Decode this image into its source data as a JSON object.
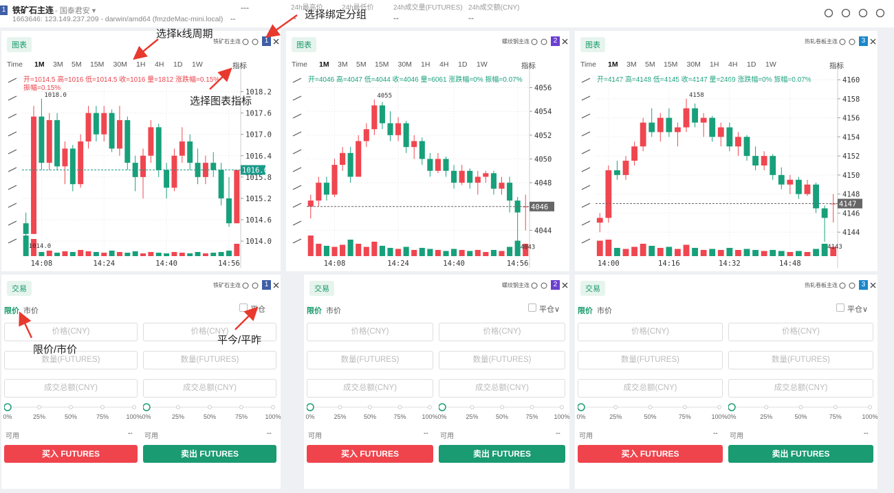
{
  "header": {
    "group": "1",
    "symbol": "铁矿石主连",
    "broker": "- 国泰君安 ▾",
    "info": "1663646: 123.149.237.209 - darwin/amd64 (fmzdeMac-mini.local)",
    "price": "---",
    "change": "--",
    "stats": [
      {
        "label": "24h最高价",
        "value": "--"
      },
      {
        "label": "24h最低价",
        "value": "--"
      },
      {
        "label": "24h成交量(FUTURES)",
        "value": "--"
      },
      {
        "label": "24h成交额(CNY)",
        "value": "--"
      }
    ]
  },
  "annotations": [
    "选择k线周期",
    "选择绑定分组",
    "选择图表指标",
    "限价/市价",
    "平今/平昨"
  ],
  "charts": [
    {
      "type": "candlestick",
      "tab": "图表",
      "symbol": "铁矿石主连",
      "group": "1",
      "group_color": "#3f5ea6",
      "periods": [
        "Time",
        "1M",
        "3M",
        "5M",
        "15M",
        "30M",
        "1H",
        "4H",
        "1D",
        "1W"
      ],
      "active_period": "1M",
      "indicator": "指标",
      "ohlc_lines": [
        "开=1014.5 高=1016 低=1014.5 收=1016 量=1812 涨跌幅=0.15%",
        "振幅=0.15%"
      ],
      "info_color": "#e8434c",
      "up_color": "#ef4650",
      "down_color": "#17a07a",
      "ylim": [
        1013.5,
        1018.75
      ],
      "vlim": [
        0,
        600
      ],
      "yticks": [
        {
          "value": 1014,
          "label": "1014.0"
        },
        1014.6,
        1015.2,
        1015.8,
        1016.4,
        {
          "value": 1017,
          "label": "1017.0"
        },
        1017.6,
        1018.2
      ],
      "xticks": [
        {
          "value": 2,
          "label": "14:08"
        },
        {
          "value": 10,
          "label": "14:24"
        },
        {
          "value": 18,
          "label": "14:40"
        },
        {
          "value": 26,
          "label": "14:56"
        }
      ],
      "last": {
        "value": 1016,
        "label": "1016.0"
      },
      "last_color": "#1a9a8a",
      "high_mark": {
        "value": 1018,
        "label": "1018.0"
      },
      "low_mark": {
        "value": 1014,
        "label": "1014.0"
      },
      "candles": [
        [
          1014.5,
          1014.8,
          1014.0,
          1014.2,
          300
        ],
        [
          1014.2,
          1017.8,
          1014.2,
          1017.5,
          250
        ],
        [
          1017.5,
          1018.0,
          1016.0,
          1016.2,
          60
        ],
        [
          1016.2,
          1017.6,
          1016.0,
          1017.4,
          80
        ],
        [
          1017.4,
          1017.6,
          1016.0,
          1016.1,
          50
        ],
        [
          1016.1,
          1016.8,
          1015.6,
          1016.6,
          70
        ],
        [
          1016.6,
          1016.7,
          1015.4,
          1015.6,
          60
        ],
        [
          1015.6,
          1017.0,
          1015.5,
          1016.8,
          90
        ],
        [
          1016.8,
          1017.8,
          1016.6,
          1017.6,
          70
        ],
        [
          1017.6,
          1017.8,
          1016.8,
          1017.0,
          60
        ],
        [
          1017.0,
          1017.8,
          1016.8,
          1017.6,
          50
        ],
        [
          1017.6,
          1017.7,
          1016.5,
          1016.6,
          80
        ],
        [
          1016.6,
          1017.8,
          1016.4,
          1017.4,
          60
        ],
        [
          1017.4,
          1017.5,
          1016.0,
          1016.2,
          50
        ],
        [
          1016.2,
          1016.4,
          1015.4,
          1015.8,
          70
        ],
        [
          1015.8,
          1016.6,
          1015.2,
          1016.4,
          40
        ],
        [
          1016.4,
          1017.4,
          1016.2,
          1017.2,
          60
        ],
        [
          1017.2,
          1017.3,
          1015.8,
          1016.0,
          50
        ],
        [
          1016.0,
          1016.2,
          1015.2,
          1015.5,
          40
        ],
        [
          1015.5,
          1016.6,
          1015.4,
          1016.4,
          60
        ],
        [
          1016.4,
          1017.2,
          1016.2,
          1016.8,
          50
        ],
        [
          1016.8,
          1017.0,
          1016.0,
          1016.2,
          40
        ],
        [
          1016.2,
          1016.6,
          1015.6,
          1015.8,
          60
        ],
        [
          1015.8,
          1016.4,
          1015.6,
          1016.2,
          40
        ],
        [
          1016.2,
          1016.5,
          1015.8,
          1016.0,
          50
        ],
        [
          1016.0,
          1016.2,
          1015.0,
          1015.2,
          60
        ],
        [
          1015.2,
          1015.8,
          1014.4,
          1014.5,
          80
        ],
        [
          1014.5,
          1016.0,
          1014.5,
          1016.0,
          180
        ]
      ]
    },
    {
      "type": "candlestick",
      "tab": "图表",
      "symbol": "螺纹钢主连",
      "group": "2",
      "group_color": "#6b3fd0",
      "periods": [
        "Time",
        "1M",
        "3M",
        "5M",
        "15M",
        "30M",
        "1H",
        "4H",
        "1D",
        "1W"
      ],
      "active_period": "1M",
      "indicator": "指标",
      "ohlc_lines": [
        "开=4046 高=4047 低=4044 收=4046 量=6061 涨跌幅=0% 振幅=0.07%"
      ],
      "info_color": "#17a07a",
      "up_color": "#ef4650",
      "down_color": "#17a07a",
      "ylim": [
        4041.6,
        4057.3
      ],
      "vlim": [
        0,
        400
      ],
      "yticks": [
        4044,
        4046,
        4048,
        4050,
        4052,
        4054,
        4056
      ],
      "xticks": [
        {
          "value": 3,
          "label": "14:08"
        },
        {
          "value": 11,
          "label": "14:24"
        },
        {
          "value": 18,
          "label": "14:40"
        },
        {
          "value": 26,
          "label": "14:56"
        }
      ],
      "last": {
        "value": 4046,
        "label": "4046"
      },
      "last_color": "#666666",
      "high_mark": {
        "value": 4055,
        "label": "4055"
      },
      "low_mark": {
        "value": 4043,
        "label": "4043"
      },
      "candles": [
        [
          4046.0,
          4047.0,
          4045.0,
          4046.5,
          200
        ],
        [
          4046.5,
          4048.5,
          4046.0,
          4048.0,
          120
        ],
        [
          4048.0,
          4048.5,
          4046.5,
          4047.0,
          100
        ],
        [
          4047.0,
          4050.0,
          4046.8,
          4049.5,
          90
        ],
        [
          4049.5,
          4051.0,
          4049.0,
          4050.5,
          110
        ],
        [
          4050.5,
          4051.0,
          4048.0,
          4048.5,
          160
        ],
        [
          4048.5,
          4052.0,
          4048.5,
          4051.5,
          120
        ],
        [
          4051.5,
          4053.0,
          4051.0,
          4052.5,
          90
        ],
        [
          4052.5,
          4055.0,
          4052.0,
          4054.5,
          140
        ],
        [
          4054.5,
          4054.8,
          4052.5,
          4053.0,
          100
        ],
        [
          4053.0,
          4054.0,
          4051.5,
          4052.0,
          80
        ],
        [
          4052.0,
          4053.5,
          4051.5,
          4053.0,
          70
        ],
        [
          4053.0,
          4053.2,
          4050.5,
          4051.0,
          90
        ],
        [
          4051.0,
          4052.0,
          4050.0,
          4051.5,
          60
        ],
        [
          4051.5,
          4051.8,
          4049.5,
          4050.0,
          80
        ],
        [
          4050.0,
          4050.5,
          4048.5,
          4049.0,
          70
        ],
        [
          4049.0,
          4050.5,
          4048.8,
          4050.0,
          60
        ],
        [
          4050.0,
          4050.2,
          4048.5,
          4049.0,
          50
        ],
        [
          4049.0,
          4049.5,
          4047.5,
          4048.0,
          70
        ],
        [
          4048.0,
          4049.5,
          4047.8,
          4049.0,
          60
        ],
        [
          4049.0,
          4049.2,
          4047.5,
          4048.0,
          50
        ],
        [
          4048.0,
          4049.0,
          4047.0,
          4048.5,
          60
        ],
        [
          4048.5,
          4049.0,
          4048.0,
          4048.8,
          40
        ],
        [
          4048.8,
          4049.0,
          4047.0,
          4047.5,
          60
        ],
        [
          4047.5,
          4048.5,
          4047.0,
          4048.0,
          50
        ],
        [
          4048.0,
          4048.5,
          4045.5,
          4046.5,
          90
        ],
        [
          4046.5,
          4046.8,
          4043.0,
          4045.5,
          150
        ],
        [
          4046.0,
          4047.0,
          4044.0,
          4046.0,
          120
        ]
      ]
    },
    {
      "type": "candlestick",
      "tab": "图表",
      "symbol": "热轧卷板主连",
      "group": "3",
      "group_color": "#1a87c9",
      "periods": [
        "Time",
        "1M",
        "3M",
        "5M",
        "15M",
        "30M",
        "1H",
        "4H",
        "1D",
        "1W"
      ],
      "active_period": "1M",
      "indicator": "指标",
      "ohlc_lines": [
        "开=4147 高=4148 低=4145 收=4147 量=2469 涨跌幅=0% 振幅=0.07%"
      ],
      "info_color": "#17a07a",
      "up_color": "#ef4650",
      "down_color": "#17a07a",
      "ylim": [
        4141.2,
        4160.8
      ],
      "vlim": [
        0,
        400
      ],
      "yticks": [
        4144,
        4146,
        4148,
        4150,
        4152,
        4154,
        4156,
        4158,
        4160
      ],
      "xticks": [
        {
          "value": 1,
          "label": "14:00"
        },
        {
          "value": 8,
          "label": "14:16"
        },
        {
          "value": 15,
          "label": "14:32"
        },
        {
          "value": 22,
          "label": "14:48"
        }
      ],
      "last": {
        "value": 4147,
        "label": "4147"
      },
      "last_color": "#666666",
      "high_mark": {
        "value": 4158,
        "label": "4158"
      },
      "low_mark": {
        "value": 4143,
        "label": "4143"
      },
      "candles": [
        [
          4145.0,
          4146.0,
          4144.0,
          4145.5,
          150
        ],
        [
          4145.5,
          4151.0,
          4145.0,
          4150.5,
          160
        ],
        [
          4150.5,
          4151.5,
          4149.5,
          4150.0,
          80
        ],
        [
          4150.0,
          4152.0,
          4149.5,
          4151.5,
          70
        ],
        [
          4151.5,
          4153.5,
          4151.0,
          4153.0,
          90
        ],
        [
          4153.0,
          4156.0,
          4152.5,
          4155.5,
          120
        ],
        [
          4155.5,
          4157.0,
          4154.0,
          4154.5,
          100
        ],
        [
          4154.5,
          4156.5,
          4153.5,
          4156.0,
          80
        ],
        [
          4156.0,
          4157.0,
          4154.0,
          4154.5,
          90
        ],
        [
          4154.5,
          4155.5,
          4153.0,
          4155.0,
          70
        ],
        [
          4155.0,
          4158.0,
          4154.5,
          4157.0,
          110
        ],
        [
          4157.0,
          4157.5,
          4155.0,
          4155.5,
          80
        ],
        [
          4155.5,
          4156.5,
          4154.0,
          4156.0,
          60
        ],
        [
          4156.0,
          4156.2,
          4153.5,
          4154.0,
          70
        ],
        [
          4154.0,
          4155.5,
          4153.0,
          4155.0,
          60
        ],
        [
          4155.0,
          4155.5,
          4152.5,
          4153.0,
          80
        ],
        [
          4153.0,
          4154.5,
          4152.0,
          4154.0,
          60
        ],
        [
          4154.0,
          4154.2,
          4151.5,
          4152.0,
          70
        ],
        [
          4152.0,
          4153.0,
          4150.5,
          4151.0,
          60
        ],
        [
          4151.0,
          4152.5,
          4150.5,
          4152.0,
          50
        ],
        [
          4152.0,
          4152.2,
          4149.5,
          4150.0,
          60
        ],
        [
          4150.0,
          4150.8,
          4148.5,
          4149.0,
          50
        ],
        [
          4149.0,
          4150.0,
          4148.0,
          4149.5,
          40
        ],
        [
          4149.5,
          4149.8,
          4147.5,
          4148.0,
          50
        ],
        [
          4148.0,
          4149.5,
          4147.8,
          4149.0,
          40
        ],
        [
          4149.0,
          4149.2,
          4146.0,
          4146.5,
          70
        ],
        [
          4146.5,
          4146.8,
          4143.0,
          4145.5,
          120
        ],
        [
          4147.0,
          4148.0,
          4145.0,
          4147.0,
          90
        ]
      ]
    }
  ],
  "trade_panels": [
    {
      "tab": "交易",
      "symbol": "铁矿石主连",
      "group": "1",
      "group_color": "#3f5ea6",
      "order_types": [
        "限价",
        "市价"
      ],
      "close_label": "平仓",
      "sides": [
        {
          "fields": [
            "价格(CNY)",
            "数量(FUTURES)",
            "成交总额(CNY)"
          ],
          "slider": [
            "0%",
            "25%",
            "50%",
            "75%",
            "100%"
          ],
          "available_label": "可用",
          "available_value": "--",
          "button": "买入 FUTURES",
          "button_color": "#f0444d"
        },
        {
          "fields": [
            "价格(CNY)",
            "数量(FUTURES)",
            "成交总额(CNY)"
          ],
          "slider": [
            "0%",
            "25%",
            "50%",
            "75%",
            "100%"
          ],
          "available_label": "可用",
          "available_value": "--",
          "button": "卖出 FUTURES",
          "button_color": "#1a9b72"
        }
      ]
    },
    {
      "tab": "交易",
      "symbol": "螺纹钢主连",
      "group": "2",
      "group_color": "#6b3fd0",
      "order_types": [
        "限价",
        "市价"
      ],
      "close_label": "平仓∨",
      "sides": [
        {
          "fields": [
            "价格(CNY)",
            "数量(FUTURES)",
            "成交总额(CNY)"
          ],
          "slider": [
            "0%",
            "25%",
            "50%",
            "75%",
            "100%"
          ],
          "available_label": "可用",
          "available_value": "--",
          "button": "买入 FUTURES",
          "button_color": "#f0444d"
        },
        {
          "fields": [
            "价格(CNY)",
            "数量(FUTURES)",
            "成交总额(CNY)"
          ],
          "slider": [
            "0%",
            "25%",
            "50%",
            "75%",
            "100%"
          ],
          "available_label": "可用",
          "available_value": "--",
          "button": "卖出 FUTURES",
          "button_color": "#1a9b72"
        }
      ]
    },
    {
      "tab": "交易",
      "symbol": "热轧卷板主连",
      "group": "3",
      "group_color": "#1a87c9",
      "order_types": [
        "限价",
        "市价"
      ],
      "close_label": "平仓∨",
      "sides": [
        {
          "fields": [
            "价格(CNY)",
            "数量(FUTURES)",
            "成交总额(CNY)"
          ],
          "slider": [
            "0%",
            "25%",
            "50%",
            "75%",
            "100%"
          ],
          "available_label": "可用",
          "available_value": "--",
          "button": "买入 FUTURES",
          "button_color": "#f0444d"
        },
        {
          "fields": [
            "价格(CNY)",
            "数量(FUTURES)",
            "成交总额(CNY)"
          ],
          "slider": [
            "0%",
            "25%",
            "50%",
            "75%",
            "100%"
          ],
          "available_label": "可用",
          "available_value": "--",
          "button": "卖出 FUTURES",
          "button_color": "#1a9b72"
        }
      ]
    }
  ]
}
